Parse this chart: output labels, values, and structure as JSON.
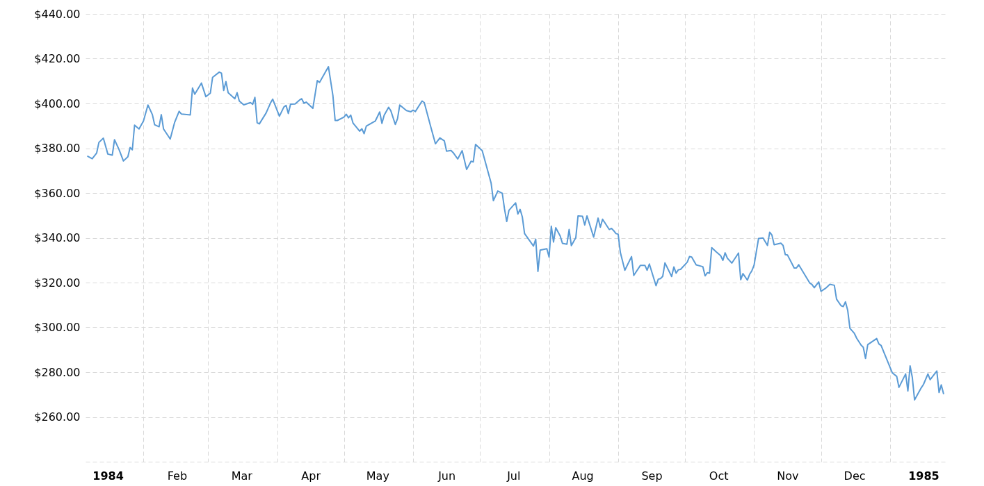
{
  "chart_data": {
    "type": "line",
    "x": [
      "1984-01-07",
      "1984-01-09",
      "1984-01-11",
      "1984-01-12",
      "1984-01-14",
      "1984-01-16",
      "1984-01-18",
      "1984-01-19",
      "1984-01-21",
      "1984-01-23",
      "1984-01-25",
      "1984-01-26",
      "1984-01-27",
      "1984-01-28",
      "1984-01-30",
      "1984-02-01",
      "1984-02-03",
      "1984-02-05",
      "1984-02-06",
      "1984-02-08",
      "1984-02-09",
      "1984-02-10",
      "1984-02-13",
      "1984-02-15",
      "1984-02-17",
      "1984-02-18",
      "1984-02-22",
      "1984-02-23",
      "1984-02-24",
      "1984-02-27",
      "1984-02-29",
      "1984-03-02",
      "1984-03-03",
      "1984-03-06",
      "1984-03-07",
      "1984-03-08",
      "1984-03-09",
      "1984-03-10",
      "1984-03-13",
      "1984-03-14",
      "1984-03-15",
      "1984-03-17",
      "1984-03-20",
      "1984-03-21",
      "1984-03-22",
      "1984-03-23",
      "1984-03-24",
      "1984-03-27",
      "1984-03-29",
      "1984-03-30",
      "1984-04-02",
      "1984-04-04",
      "1984-04-05",
      "1984-04-06",
      "1984-04-07",
      "1984-04-09",
      "1984-04-11",
      "1984-04-12",
      "1984-04-13",
      "1984-04-14",
      "1984-04-17",
      "1984-04-19",
      "1984-04-20",
      "1984-04-24",
      "1984-04-26",
      "1984-04-27",
      "1984-04-28",
      "1984-05-01",
      "1984-05-02",
      "1984-05-03",
      "1984-05-04",
      "1984-05-05",
      "1984-05-08",
      "1984-05-09",
      "1984-05-10",
      "1984-05-11",
      "1984-05-14",
      "1984-05-15",
      "1984-05-17",
      "1984-05-18",
      "1984-05-19",
      "1984-05-21",
      "1984-05-22",
      "1984-05-24",
      "1984-05-25",
      "1984-05-26",
      "1984-05-29",
      "1984-05-31",
      "1984-06-01",
      "1984-06-02",
      "1984-06-05",
      "1984-06-06",
      "1984-06-09",
      "1984-06-11",
      "1984-06-13",
      "1984-06-15",
      "1984-06-16",
      "1984-06-18",
      "1984-06-19",
      "1984-06-21",
      "1984-06-23",
      "1984-06-25",
      "1984-06-27",
      "1984-06-28",
      "1984-06-29",
      "1984-07-02",
      "1984-07-06",
      "1984-07-07",
      "1984-07-09",
      "1984-07-11",
      "1984-07-12",
      "1984-07-13",
      "1984-07-14",
      "1984-07-17",
      "1984-07-18",
      "1984-07-19",
      "1984-07-20",
      "1984-07-21",
      "1984-07-25",
      "1984-07-26",
      "1984-07-27",
      "1984-07-28",
      "1984-07-31",
      "1984-08-01",
      "1984-08-02",
      "1984-08-03",
      "1984-08-04",
      "1984-08-06",
      "1984-08-07",
      "1984-08-09",
      "1984-08-10",
      "1984-08-11",
      "1984-08-13",
      "1984-08-14",
      "1984-08-16",
      "1984-08-17",
      "1984-08-18",
      "1984-08-21",
      "1984-08-23",
      "1984-08-24",
      "1984-08-25",
      "1984-08-28",
      "1984-08-29",
      "1984-08-30",
      "1984-08-31",
      "1984-09-01",
      "1984-09-02",
      "1984-09-04",
      "1984-09-07",
      "1984-09-08",
      "1984-09-11",
      "1984-09-13",
      "1984-09-14",
      "1984-09-15",
      "1984-09-18",
      "1984-09-19",
      "1984-09-20",
      "1984-09-21",
      "1984-09-22",
      "1984-09-25",
      "1984-09-26",
      "1984-09-27",
      "1984-09-28",
      "1984-09-29",
      "1984-10-02",
      "1984-10-03",
      "1984-10-04",
      "1984-10-06",
      "1984-10-09",
      "1984-10-10",
      "1984-10-11",
      "1984-10-12",
      "1984-10-13",
      "1984-10-15",
      "1984-10-17",
      "1984-10-18",
      "1984-10-19",
      "1984-10-20",
      "1984-10-22",
      "1984-10-25",
      "1984-10-26",
      "1984-10-27",
      "1984-10-29",
      "1984-10-30",
      "1984-10-31",
      "1984-11-01",
      "1984-11-03",
      "1984-11-05",
      "1984-11-07",
      "1984-11-08",
      "1984-11-09",
      "1984-11-10",
      "1984-11-13",
      "1984-11-14",
      "1984-11-15",
      "1984-11-16",
      "1984-11-19",
      "1984-11-20",
      "1984-11-21",
      "1984-11-26",
      "1984-11-27",
      "1984-11-28",
      "1984-11-30",
      "1984-12-01",
      "1984-12-03",
      "1984-12-05",
      "1984-12-07",
      "1984-12-08",
      "1984-12-10",
      "1984-12-11",
      "1984-12-12",
      "1984-12-13",
      "1984-12-14",
      "1984-12-16",
      "1984-12-17",
      "1984-12-19",
      "1984-12-20",
      "1984-12-21",
      "1984-12-22",
      "1984-12-26",
      "1984-12-27",
      "1984-12-28",
      "1985-01-02",
      "1985-01-04",
      "1985-01-05",
      "1985-01-08",
      "1985-01-09",
      "1985-01-10",
      "1985-01-11",
      "1985-01-12",
      "1985-01-15",
      "1985-01-16",
      "1985-01-18",
      "1985-01-19",
      "1985-01-22",
      "1985-01-23",
      "1985-01-24",
      "1985-01-25"
    ],
    "series": [
      {
        "color": "#5b9bd5",
        "values": [
          376.4,
          375.3,
          377.9,
          382.6,
          384.5,
          377.4,
          376.9,
          383.8,
          379.5,
          374.3,
          376.2,
          380.3,
          379.3,
          390.3,
          388.6,
          392.2,
          399.3,
          395.0,
          390.5,
          389.6,
          395.0,
          388.6,
          384.1,
          391.6,
          396.5,
          395.3,
          394.9,
          406.9,
          404.1,
          409.1,
          403.0,
          404.6,
          411.6,
          414.0,
          413.5,
          405.8,
          409.8,
          404.8,
          402.1,
          404.8,
          401.1,
          399.4,
          400.4,
          399.6,
          402.7,
          391.4,
          390.9,
          395.7,
          400.2,
          401.9,
          394.3,
          398.4,
          399.1,
          395.5,
          399.7,
          399.8,
          401.5,
          402.1,
          400.1,
          400.6,
          397.8,
          410.2,
          409.4,
          416.4,
          403.5,
          392.4,
          392.4,
          393.9,
          395.2,
          393.6,
          394.8,
          391.3,
          387.6,
          388.7,
          386.5,
          389.9,
          391.6,
          392.1,
          396.2,
          391.1,
          394.7,
          398.3,
          396.7,
          390.6,
          393.2,
          399.3,
          396.8,
          396.3,
          397.0,
          396.4,
          401.1,
          400.4,
          389.2,
          382.0,
          384.6,
          383.3,
          378.7,
          379.0,
          378.0,
          375.2,
          378.9,
          370.5,
          374.2,
          373.9,
          381.7,
          378.9,
          364.4,
          356.6,
          360.9,
          359.9,
          352.9,
          347.3,
          352.3,
          355.6,
          350.6,
          352.7,
          349.3,
          341.9,
          336.3,
          339.4,
          325.0,
          334.5,
          335.1,
          331.4,
          345.2,
          338.1,
          344.5,
          340.8,
          337.5,
          337.1,
          343.7,
          336.5,
          340.1,
          349.8,
          349.6,
          345.7,
          349.8,
          340.3,
          348.8,
          344.7,
          348.3,
          343.7,
          344.2,
          343.2,
          341.9,
          341.6,
          333.4,
          325.5,
          331.6,
          323.2,
          327.7,
          327.7,
          325.5,
          328.3,
          318.6,
          321.5,
          321.8,
          322.8,
          328.8,
          322.7,
          327.0,
          324.2,
          325.7,
          325.9,
          329.1,
          331.6,
          331.4,
          327.9,
          327.1,
          323.0,
          324.4,
          324.2,
          335.6,
          333.7,
          332.0,
          329.9,
          333.3,
          330.9,
          328.7,
          333.2,
          321.3,
          324.0,
          321.1,
          323.7,
          325.3,
          327.8,
          339.7,
          339.9,
          336.6,
          342.5,
          341.2,
          336.9,
          337.6,
          336.6,
          332.5,
          332.3,
          326.5,
          326.5,
          328.0,
          319.8,
          319.1,
          317.7,
          320.3,
          316.1,
          317.4,
          319.2,
          318.8,
          312.6,
          309.7,
          309.3,
          311.4,
          307.6,
          299.6,
          297.3,
          295.2,
          292.1,
          291.1,
          286.1,
          292.3,
          295.0,
          292.6,
          291.9,
          279.7,
          278.1,
          273.2,
          279.2,
          271.6,
          282.8,
          277.6,
          267.6,
          273.0,
          274.5,
          279.2,
          276.6,
          280.5,
          270.9,
          274.3,
          270.4
        ]
      }
    ],
    "xlim": [
      "1984-01-06",
      "1985-01-26"
    ],
    "ylim": [
      240,
      440
    ],
    "xticks": [
      {
        "value": "1984-01-16",
        "label": "1984"
      },
      {
        "value": "1984-02-01",
        "label": null
      },
      {
        "value": "1984-02-16",
        "label": "Feb"
      },
      {
        "value": "1984-03-01",
        "label": null
      },
      {
        "value": "1984-03-16",
        "label": "Mar"
      },
      {
        "value": "1984-04-01",
        "label": null
      },
      {
        "value": "1984-04-16",
        "label": "Apr"
      },
      {
        "value": "1984-05-01",
        "label": null
      },
      {
        "value": "1984-05-16",
        "label": "May"
      },
      {
        "value": "1984-06-01",
        "label": null
      },
      {
        "value": "1984-06-16",
        "label": "Jun"
      },
      {
        "value": "1984-07-01",
        "label": null
      },
      {
        "value": "1984-07-16",
        "label": "Jul"
      },
      {
        "value": "1984-08-01",
        "label": null
      },
      {
        "value": "1984-08-16",
        "label": "Aug"
      },
      {
        "value": "1984-09-01",
        "label": null
      },
      {
        "value": "1984-09-16",
        "label": "Sep"
      },
      {
        "value": "1984-10-01",
        "label": null
      },
      {
        "value": "1984-10-16",
        "label": "Oct"
      },
      {
        "value": "1984-11-01",
        "label": null
      },
      {
        "value": "1984-11-16",
        "label": "Nov"
      },
      {
        "value": "1984-12-01",
        "label": null
      },
      {
        "value": "1984-12-16",
        "label": "Dec"
      },
      {
        "value": "1985-01-01",
        "label": null
      },
      {
        "value": "1985-01-16",
        "label": "1985"
      }
    ],
    "yticks": [
      {
        "value": 240,
        "label": null
      },
      {
        "value": 260,
        "label": "$260.00"
      },
      {
        "value": 280,
        "label": "$280.00"
      },
      {
        "value": 300,
        "label": "$300.00"
      },
      {
        "value": 320,
        "label": "$320.00"
      },
      {
        "value": 340,
        "label": "$340.00"
      },
      {
        "value": 360,
        "label": "$360.00"
      },
      {
        "value": 380,
        "label": "$380.00"
      },
      {
        "value": 400,
        "label": "$400.00"
      },
      {
        "value": 420,
        "label": "$420.00"
      },
      {
        "value": 440,
        "label": "$440.00"
      }
    ],
    "grid": true
  }
}
